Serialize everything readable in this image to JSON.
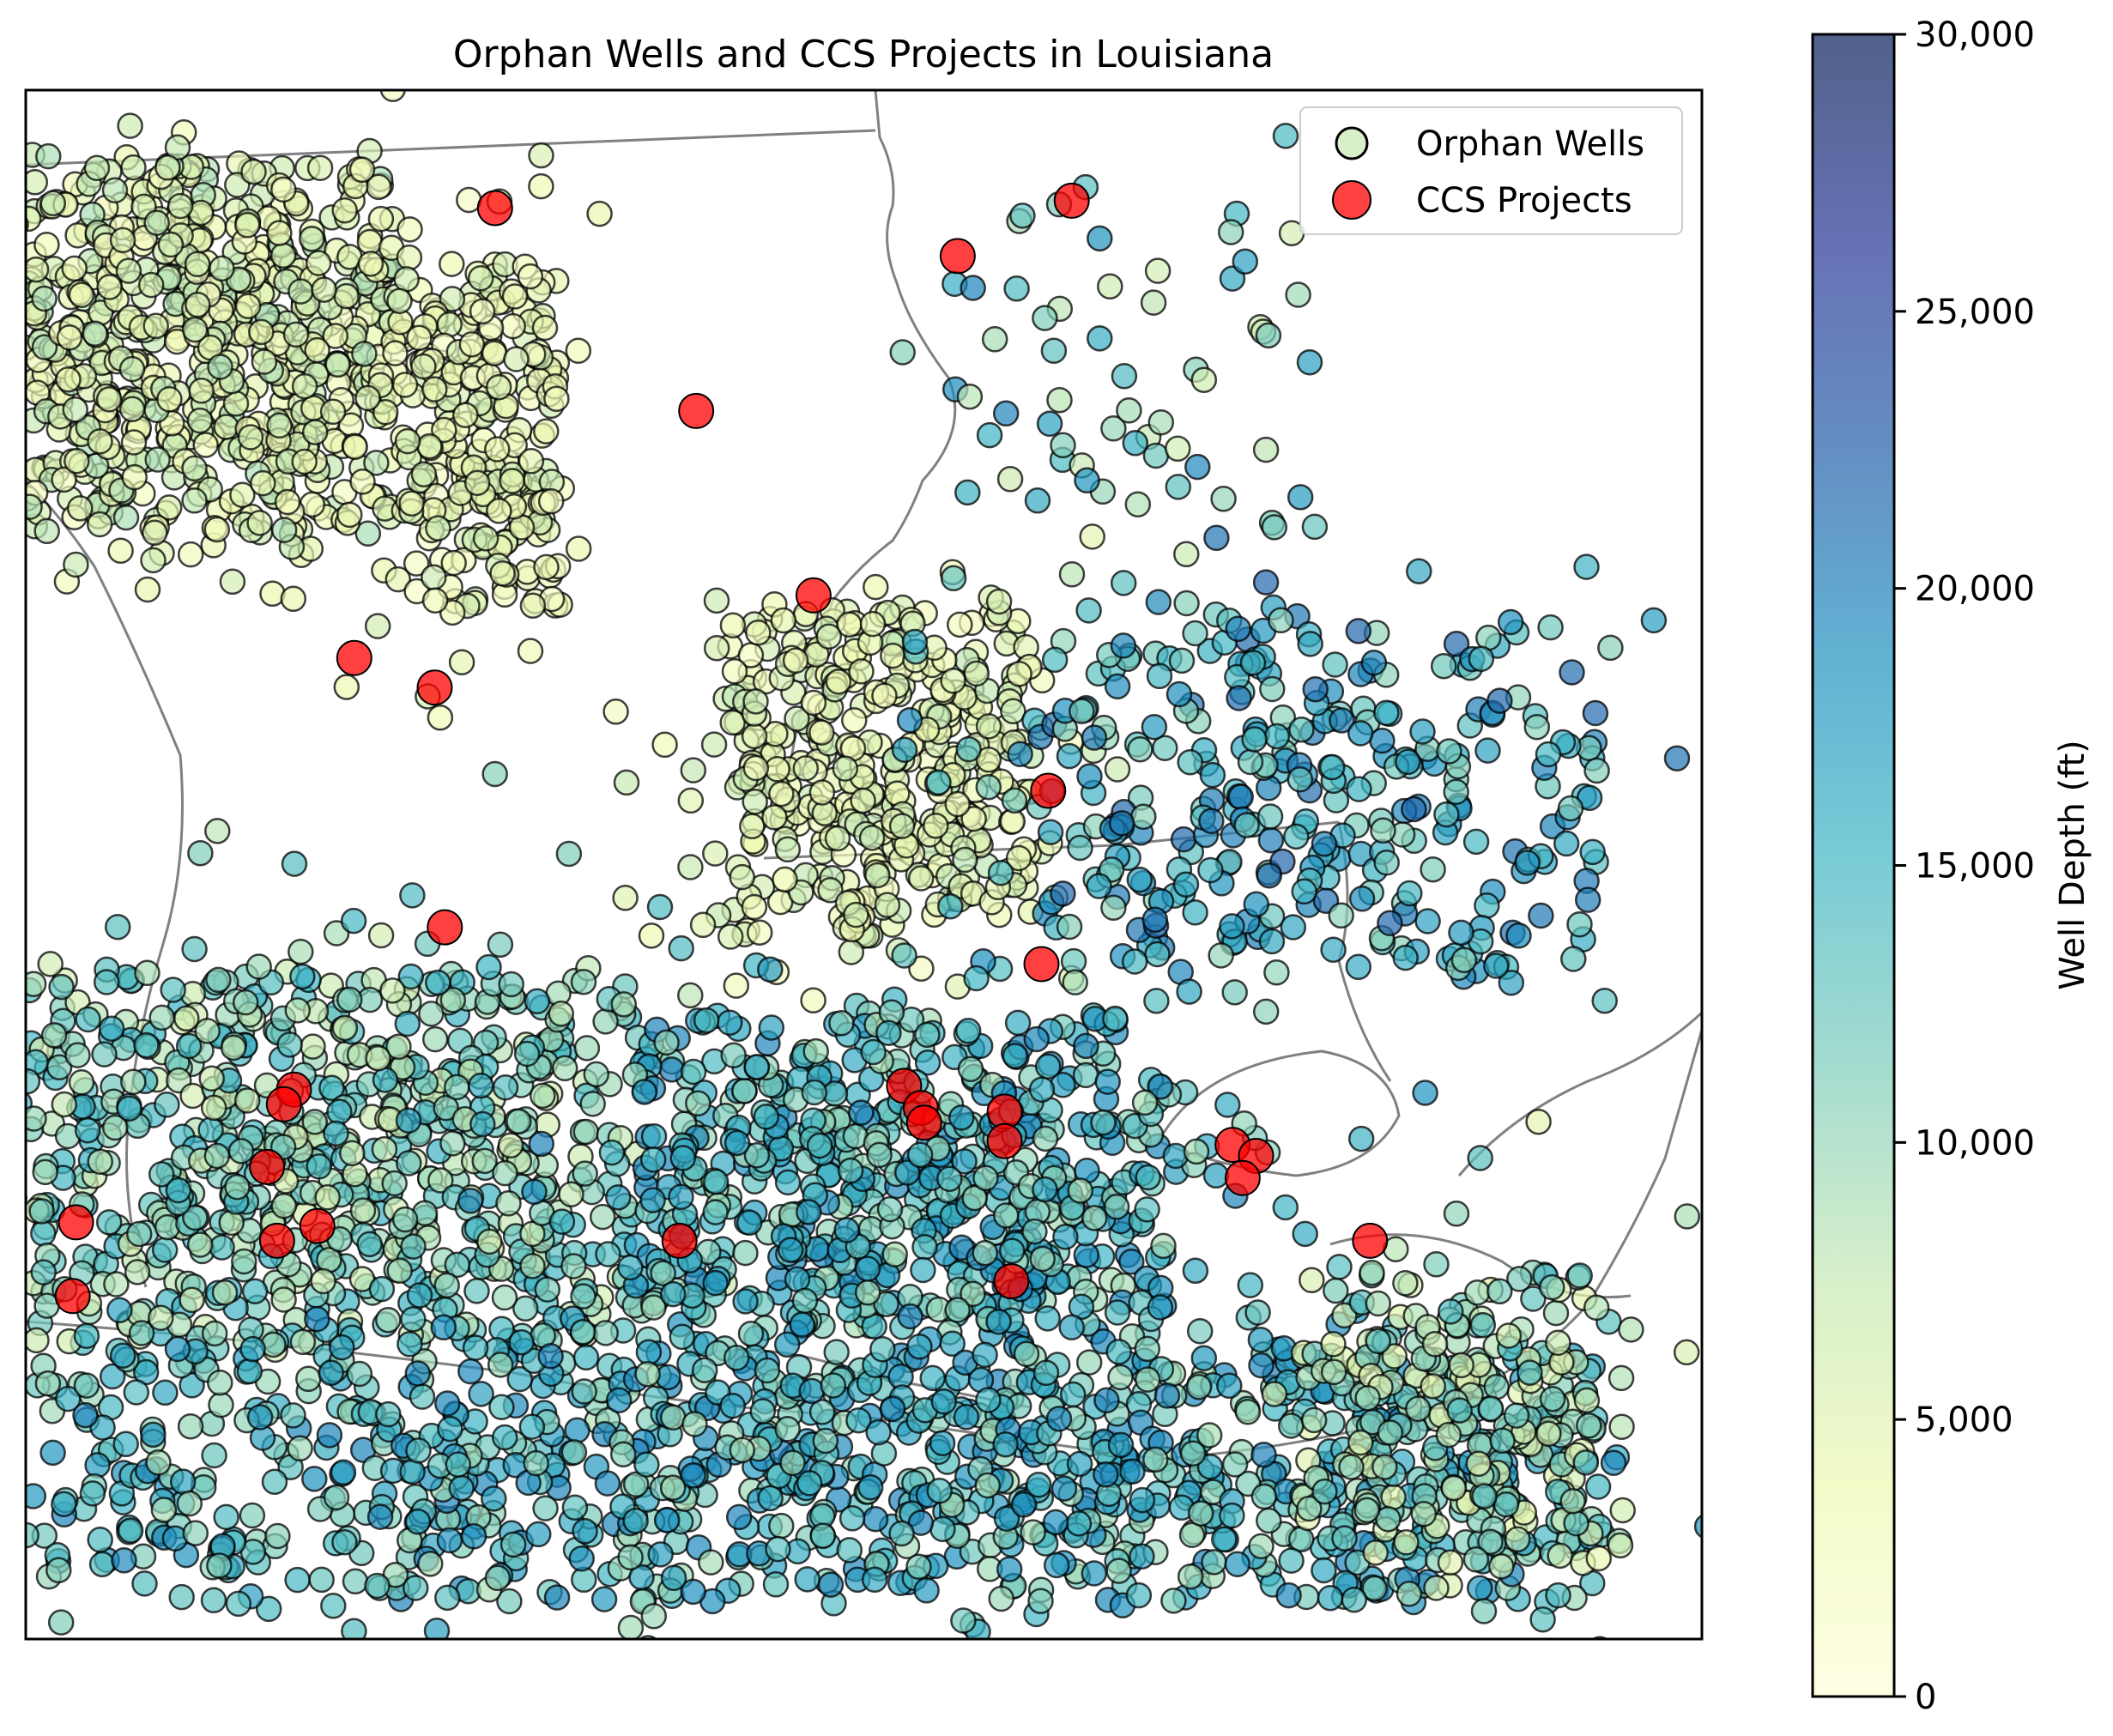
{
  "chart_data": {
    "type": "scatter",
    "title": "Orphan Wells and CCS Projects in Louisiana",
    "xlabel": "",
    "ylabel": "",
    "grid": false,
    "legend": {
      "placement": "top-right",
      "entries": [
        "Orphan Wells",
        "CCS Projects"
      ]
    },
    "colorbar": {
      "label": "Well Depth (ft)",
      "range": [
        0,
        30000
      ],
      "ticks": [
        0,
        5000,
        10000,
        15000,
        20000,
        25000,
        30000
      ],
      "tick_labels": [
        "0",
        "5,000",
        "10,000",
        "15,000",
        "20,000",
        "25,000",
        "30,000"
      ],
      "colormap": [
        "#ffffd9",
        "#edf8b1",
        "#c7e9b4",
        "#7fcdbb",
        "#41b6c4",
        "#1d91c0",
        "#225ea8",
        "#253494",
        "#081d58"
      ],
      "alpha": 0.7
    },
    "colors": {
      "ccs": "#ff0000",
      "marker_edge": "#000000",
      "boundary": "#808080"
    },
    "series": [
      {
        "name": "Orphan Wells",
        "marker": "circle",
        "color_by": "well depth (ft)",
        "clusters": [
          {
            "region": "northwest",
            "lon": [
              -94.0,
              -92.9
            ],
            "lat": [
              32.0,
              33.0
            ],
            "depth_ft": [
              2000,
              9000
            ],
            "count": 700
          },
          {
            "region": "north-central",
            "lon": [
              -92.9,
              -92.4
            ],
            "lat": [
              31.8,
              32.7
            ],
            "depth_ft": [
              1500,
              7000
            ],
            "count": 260
          },
          {
            "region": "central",
            "lon": [
              -91.9,
              -91.0
            ],
            "lat": [
              30.9,
              31.8
            ],
            "depth_ft": [
              2000,
              8000
            ],
            "count": 420
          },
          {
            "region": "east-central",
            "lon": [
              -91.0,
              -89.3
            ],
            "lat": [
              30.8,
              31.8
            ],
            "depth_ft": [
              10000,
              22000
            ],
            "count": 360
          },
          {
            "region": "northeast",
            "lon": [
              -91.3,
              -90.2
            ],
            "lat": [
              32.0,
              32.9
            ],
            "depth_ft": [
              6000,
              20000
            ],
            "count": 60
          },
          {
            "region": "southwest",
            "lon": [
              -94.0,
              -92.2
            ],
            "lat": [
              29.8,
              30.8
            ],
            "depth_ft": [
              6000,
              16000
            ],
            "count": 750
          },
          {
            "region": "south-central",
            "lon": [
              -92.2,
              -90.6
            ],
            "lat": [
              29.8,
              30.7
            ],
            "depth_ft": [
              9000,
              20000
            ],
            "count": 650
          },
          {
            "region": "coastal",
            "lon": [
              -94.0,
              -89.3
            ],
            "lat": [
              29.1,
              29.8
            ],
            "depth_ft": [
              9000,
              20000
            ],
            "count": 1100
          },
          {
            "region": "southeast",
            "lon": [
              -90.2,
              -89.3
            ],
            "lat": [
              29.2,
              30.0
            ],
            "depth_ft": [
              4000,
              14000
            ],
            "count": 260
          }
        ]
      },
      {
        "name": "CCS Projects",
        "marker": "circle",
        "points": [
          [
            -92.6,
            32.88
          ],
          [
            -90.88,
            32.9
          ],
          [
            -91.22,
            32.75
          ],
          [
            -92.0,
            32.33
          ],
          [
            -91.65,
            31.83
          ],
          [
            -93.02,
            31.66
          ],
          [
            -92.78,
            31.58
          ],
          [
            -90.95,
            31.3
          ],
          [
            -92.75,
            30.93
          ],
          [
            -90.97,
            30.83
          ],
          [
            -93.2,
            30.49
          ],
          [
            -93.23,
            30.45
          ],
          [
            -91.38,
            30.5
          ],
          [
            -91.33,
            30.44
          ],
          [
            -91.32,
            30.4
          ],
          [
            -91.08,
            30.43
          ],
          [
            -91.08,
            30.35
          ],
          [
            -90.4,
            30.34
          ],
          [
            -90.33,
            30.31
          ],
          [
            -90.37,
            30.25
          ],
          [
            -93.28,
            30.28
          ],
          [
            -93.85,
            30.13
          ],
          [
            -93.25,
            30.08
          ],
          [
            -93.13,
            30.12
          ],
          [
            -92.05,
            30.08
          ],
          [
            -91.06,
            29.97
          ],
          [
            -89.99,
            30.08
          ],
          [
            -93.86,
            29.93
          ]
        ]
      }
    ],
    "map_extent": {
      "lon": [
        -94.0,
        -89.0
      ],
      "lat": [
        29.0,
        33.2
      ]
    }
  }
}
